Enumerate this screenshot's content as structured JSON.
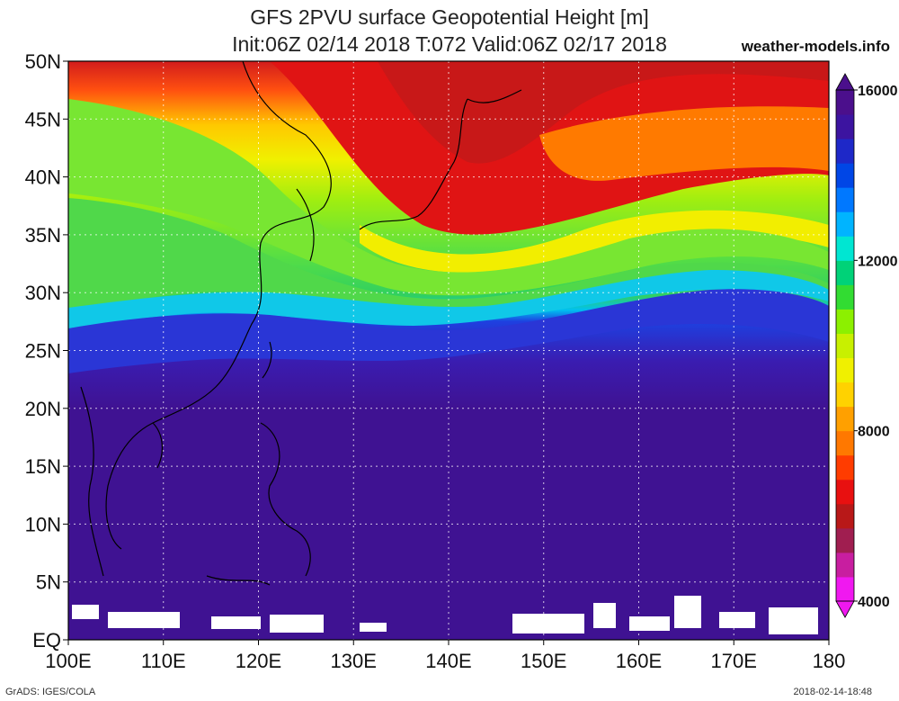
{
  "title": {
    "line1": "GFS 2PVU surface Geopotential Height [m]",
    "line2": "Init:06Z 02/14 2018 T:072 Valid:06Z 02/17 2018"
  },
  "credit": "weather-models.info",
  "footer": {
    "left": "GrADS: IGES/COLA",
    "right": "2018-02-14-18:48"
  },
  "map": {
    "lat_labels": [
      "50N",
      "45N",
      "40N",
      "35N",
      "30N",
      "25N",
      "20N",
      "15N",
      "10N",
      "5N",
      "EQ"
    ],
    "lat_values": [
      50,
      45,
      40,
      35,
      30,
      25,
      20,
      15,
      10,
      5,
      0
    ],
    "lon_labels": [
      "100E",
      "110E",
      "120E",
      "130E",
      "140E",
      "150E",
      "160E",
      "170E",
      "180"
    ],
    "lon_values": [
      100,
      110,
      120,
      130,
      140,
      150,
      160,
      170,
      180
    ],
    "lon_range": [
      100,
      180
    ],
    "lat_range": [
      0,
      50
    ],
    "grid": true
  },
  "colorbar": {
    "labels": [
      "16000",
      "12000",
      "8000",
      "4000"
    ],
    "values": [
      16000,
      12000,
      8000,
      4000
    ],
    "range": [
      4000,
      16000
    ],
    "colors": [
      "#f018f0",
      "#c81ea0",
      "#a01e50",
      "#b81818",
      "#e81010",
      "#ff3c00",
      "#ff7800",
      "#ffa000",
      "#ffd200",
      "#f0f000",
      "#c8f000",
      "#8cf000",
      "#32dc32",
      "#00d278",
      "#00e6d2",
      "#00b4ff",
      "#0078ff",
      "#0046e6",
      "#1e28c8",
      "#3c14a0",
      "#4b0f8c"
    ]
  }
}
